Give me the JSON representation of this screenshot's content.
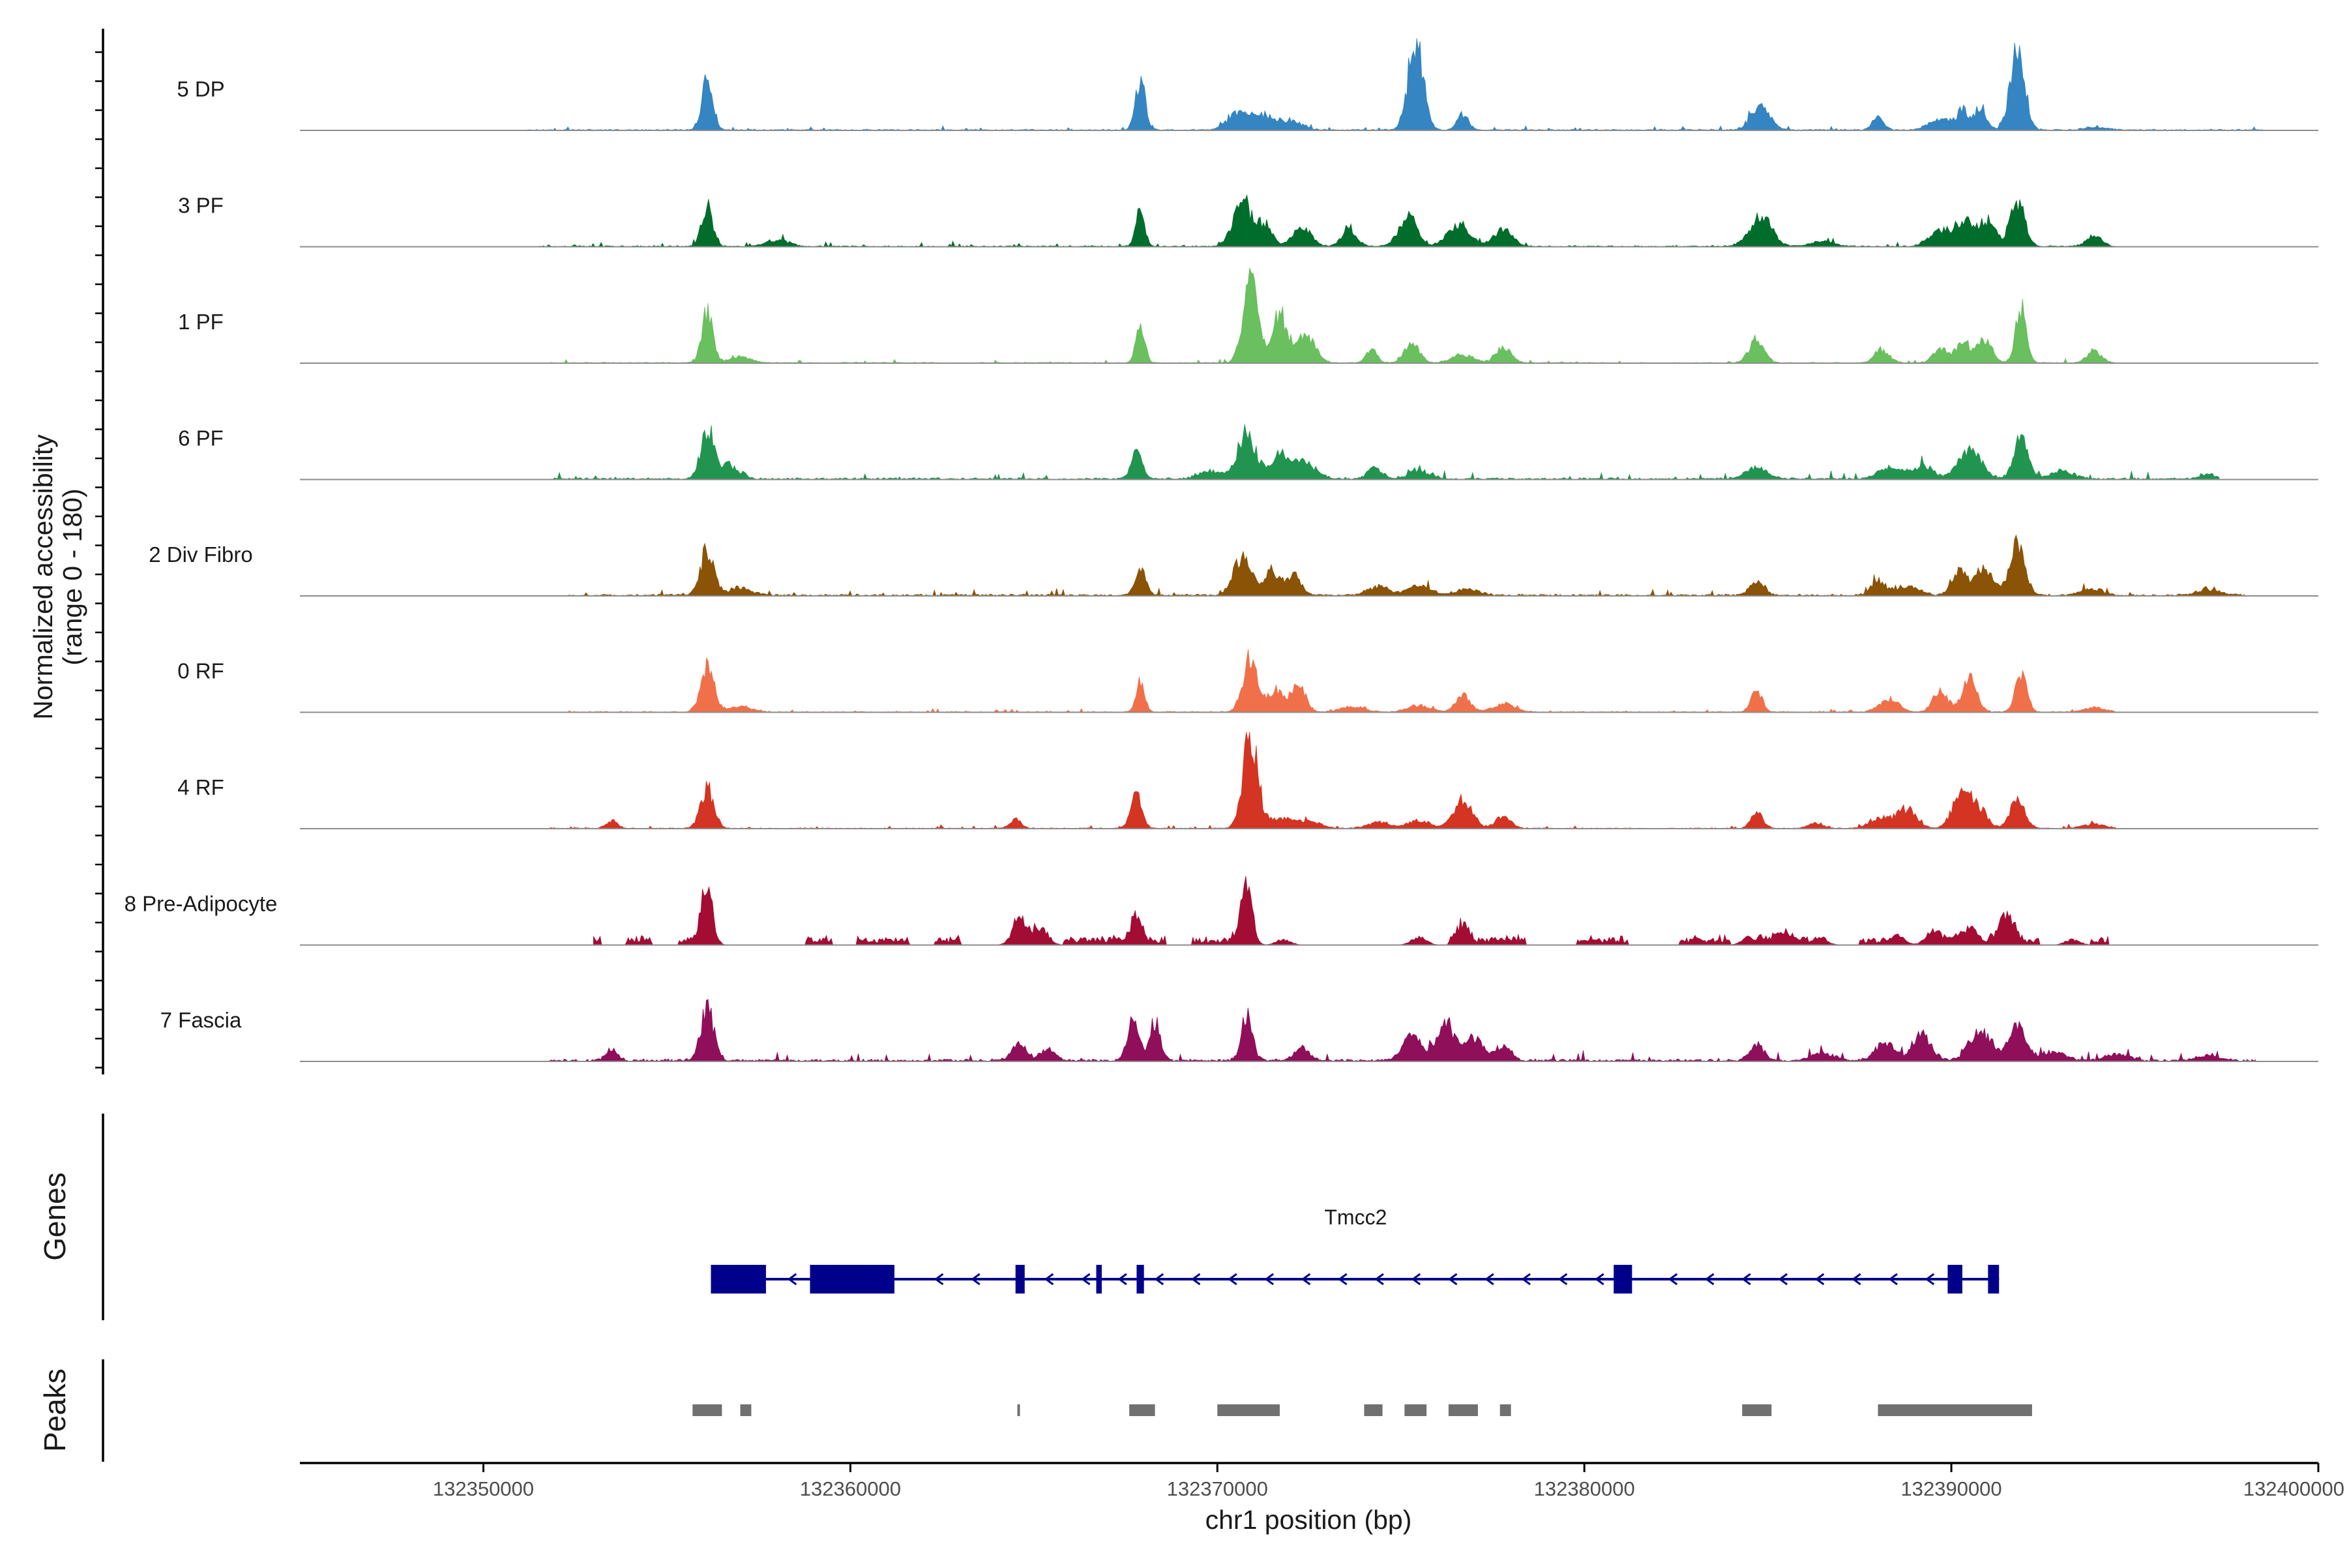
{
  "chart_data": {
    "type": "area",
    "title": "",
    "ylabel": "Normalized accessibility",
    "ylabel_range": "(range 0 - 180)",
    "xlabel": "chr1 position (bp)",
    "xlim": [
      132345000,
      132400000
    ],
    "ylim": [
      0,
      180
    ],
    "x_ticks": [
      132350000,
      132360000,
      132370000,
      132380000,
      132390000,
      132400000
    ],
    "x_tick_labels": [
      "132350000",
      "132360000",
      "132370000",
      "132380000",
      "132390000",
      "132400000"
    ],
    "series": [
      {
        "name": "5 DP",
        "color": "#3485c2",
        "range": [
          132351000,
          132398500
        ],
        "noise": 2,
        "seed": 11,
        "peaks": [
          [
            132356100,
            95,
            150
          ],
          [
            132367900,
            95,
            130
          ],
          [
            132370600,
            35,
            300
          ],
          [
            132371300,
            25,
            250
          ],
          [
            132372000,
            18,
            300
          ],
          [
            132375400,
            170,
            200
          ],
          [
            132376700,
            30,
            150
          ],
          [
            132384800,
            45,
            250
          ],
          [
            132388000,
            25,
            150
          ],
          [
            132389700,
            22,
            300
          ],
          [
            132390300,
            35,
            150
          ],
          [
            132390800,
            45,
            150
          ],
          [
            132391800,
            145,
            200
          ],
          [
            132393900,
            5,
            300
          ]
        ]
      },
      {
        "name": "3 PF",
        "color": "#006d2c",
        "range": [
          132351500,
          132394500
        ],
        "noise": 2,
        "seed": 23,
        "peaks": [
          [
            132356100,
            75,
            150
          ],
          [
            132358000,
            12,
            300
          ],
          [
            132367900,
            65,
            120
          ],
          [
            132370700,
            80,
            250
          ],
          [
            132371300,
            40,
            200
          ],
          [
            132372300,
            35,
            250
          ],
          [
            132373600,
            30,
            200
          ],
          [
            132375200,
            55,
            250
          ],
          [
            132376600,
            40,
            300
          ],
          [
            132377800,
            30,
            250
          ],
          [
            132384800,
            55,
            300
          ],
          [
            132386500,
            10,
            300
          ],
          [
            132389700,
            30,
            300
          ],
          [
            132390400,
            50,
            250
          ],
          [
            132391000,
            45,
            200
          ],
          [
            132391800,
            85,
            200
          ],
          [
            132393900,
            22,
            200
          ]
        ]
      },
      {
        "name": "1 PF",
        "color": "#6abf5f",
        "range": [
          132351800,
          132394500
        ],
        "noise": 1.5,
        "seed": 37,
        "peaks": [
          [
            132356100,
            95,
            150
          ],
          [
            132357000,
            10,
            300
          ],
          [
            132367900,
            70,
            120
          ],
          [
            132370900,
            160,
            200
          ],
          [
            132371700,
            90,
            200
          ],
          [
            132372400,
            55,
            250
          ],
          [
            132374200,
            25,
            150
          ],
          [
            132375300,
            35,
            200
          ],
          [
            132376700,
            15,
            300
          ],
          [
            132377800,
            30,
            200
          ],
          [
            132384700,
            45,
            200
          ],
          [
            132388100,
            25,
            200
          ],
          [
            132389700,
            25,
            200
          ],
          [
            132390300,
            35,
            200
          ],
          [
            132390900,
            45,
            200
          ],
          [
            132391900,
            100,
            150
          ],
          [
            132393900,
            20,
            200
          ]
        ]
      },
      {
        "name": "6 PF",
        "color": "#21954f",
        "range": [
          132351800,
          132397300
        ],
        "noise": 3,
        "seed": 41,
        "peaks": [
          [
            132356100,
            90,
            180
          ],
          [
            132356700,
            25,
            250
          ],
          [
            132367800,
            50,
            150
          ],
          [
            132369800,
            15,
            300
          ],
          [
            132370800,
            85,
            250
          ],
          [
            132371700,
            45,
            250
          ],
          [
            132372400,
            30,
            300
          ],
          [
            132374300,
            20,
            200
          ],
          [
            132375500,
            15,
            300
          ],
          [
            132384700,
            20,
            300
          ],
          [
            132388300,
            20,
            300
          ],
          [
            132389200,
            25,
            300
          ],
          [
            132390500,
            55,
            300
          ],
          [
            132391900,
            75,
            200
          ],
          [
            132393000,
            15,
            300
          ],
          [
            132397000,
            10,
            200
          ]
        ]
      },
      {
        "name": "2 Div Fibro",
        "color": "#8a5305",
        "range": [
          132352300,
          132398000
        ],
        "noise": 3,
        "seed": 53,
        "peaks": [
          [
            132356100,
            85,
            180
          ],
          [
            132357000,
            15,
            300
          ],
          [
            132367900,
            45,
            150
          ],
          [
            132370700,
            70,
            250
          ],
          [
            132371500,
            45,
            200
          ],
          [
            132372100,
            35,
            200
          ],
          [
            132374400,
            15,
            300
          ],
          [
            132375500,
            18,
            300
          ],
          [
            132376800,
            12,
            300
          ],
          [
            132384700,
            25,
            200
          ],
          [
            132388000,
            25,
            200
          ],
          [
            132388800,
            18,
            300
          ],
          [
            132390200,
            45,
            200
          ],
          [
            132390900,
            50,
            250
          ],
          [
            132391800,
            100,
            200
          ],
          [
            132393800,
            12,
            300
          ],
          [
            132397000,
            10,
            300
          ]
        ]
      },
      {
        "name": "0 RF",
        "color": "#f0704a",
        "range": [
          132352300,
          132394500
        ],
        "noise": 1.5,
        "seed": 61,
        "peaks": [
          [
            132356100,
            85,
            180
          ],
          [
            132357000,
            10,
            300
          ],
          [
            132367900,
            60,
            120
          ],
          [
            132370900,
            100,
            200
          ],
          [
            132371600,
            40,
            200
          ],
          [
            132372200,
            50,
            200
          ],
          [
            132373700,
            10,
            300
          ],
          [
            132375500,
            12,
            300
          ],
          [
            132376700,
            30,
            200
          ],
          [
            132377800,
            15,
            300
          ],
          [
            132384700,
            40,
            150
          ],
          [
            132388300,
            25,
            250
          ],
          [
            132389700,
            40,
            200
          ],
          [
            132390500,
            60,
            200
          ],
          [
            132391900,
            70,
            150
          ],
          [
            132393900,
            8,
            300
          ]
        ]
      },
      {
        "name": "4 RF",
        "color": "#d43422",
        "range": [
          132351800,
          132394500
        ],
        "noise": 1.5,
        "seed": 73,
        "peaks": [
          [
            132353500,
            15,
            150
          ],
          [
            132356100,
            75,
            180
          ],
          [
            132364500,
            18,
            150
          ],
          [
            132367800,
            65,
            150
          ],
          [
            132370900,
            175,
            200
          ],
          [
            132371700,
            20,
            300
          ],
          [
            132372500,
            15,
            300
          ],
          [
            132374400,
            12,
            300
          ],
          [
            132375500,
            15,
            300
          ],
          [
            132376700,
            50,
            250
          ],
          [
            132377800,
            25,
            200
          ],
          [
            132384700,
            35,
            150
          ],
          [
            132386300,
            10,
            200
          ],
          [
            132388100,
            20,
            300
          ],
          [
            132388800,
            35,
            250
          ],
          [
            132390300,
            70,
            250
          ],
          [
            132390800,
            30,
            200
          ],
          [
            132391800,
            50,
            200
          ],
          [
            132393900,
            8,
            300
          ]
        ]
      },
      {
        "name": "8 Pre-Adipocyte",
        "color": "#a30d34",
        "range": [
          132353000,
          132394300
        ],
        "noise": 4,
        "seed": 89,
        "sparse": [
          [
            132355000,
            132393800
          ]
        ],
        "peaks": [
          [
            132356100,
            110,
            150
          ],
          [
            132364600,
            40,
            200
          ],
          [
            132365200,
            30,
            200
          ],
          [
            132367800,
            45,
            150
          ],
          [
            132370800,
            125,
            150
          ],
          [
            132371800,
            10,
            200
          ],
          [
            132375500,
            15,
            200
          ],
          [
            132376700,
            35,
            150
          ],
          [
            132384500,
            15,
            200
          ],
          [
            132385400,
            15,
            200
          ],
          [
            132386400,
            15,
            200
          ],
          [
            132388500,
            20,
            200
          ],
          [
            132389500,
            25,
            200
          ],
          [
            132390500,
            30,
            250
          ],
          [
            132391500,
            45,
            200
          ],
          [
            132393300,
            10,
            200
          ]
        ]
      },
      {
        "name": "7 Fascia",
        "color": "#8f0f5b",
        "range": [
          132351800,
          132398300
        ],
        "noise": 4,
        "seed": 97,
        "peaks": [
          [
            132353500,
            20,
            150
          ],
          [
            132356100,
            95,
            180
          ],
          [
            132364600,
            30,
            200
          ],
          [
            132365400,
            20,
            200
          ],
          [
            132367700,
            85,
            150
          ],
          [
            132368300,
            70,
            150
          ],
          [
            132370800,
            85,
            150
          ],
          [
            132372300,
            25,
            200
          ],
          [
            132375300,
            45,
            250
          ],
          [
            132376200,
            70,
            250
          ],
          [
            132377000,
            40,
            250
          ],
          [
            132377800,
            30,
            200
          ],
          [
            132384700,
            30,
            200
          ],
          [
            132386500,
            15,
            300
          ],
          [
            132388200,
            35,
            250
          ],
          [
            132389200,
            50,
            250
          ],
          [
            132390800,
            55,
            300
          ],
          [
            132391800,
            60,
            250
          ],
          [
            132392800,
            15,
            300
          ],
          [
            132394500,
            12,
            300
          ],
          [
            132397000,
            10,
            300
          ]
        ]
      }
    ],
    "genes": {
      "title": "Genes",
      "name": "Tmcc2",
      "strand": "-",
      "color": "#00008b",
      "start": 132356200,
      "end": 132391300,
      "exons": [
        [
          132356200,
          132357700
        ],
        [
          132358900,
          132361200
        ],
        [
          132364500,
          132364750
        ],
        [
          132366700,
          132366850
        ],
        [
          132367800,
          132368000
        ],
        [
          132380800,
          132381300
        ],
        [
          132389900,
          132390300
        ],
        [
          132391000,
          132391300
        ]
      ]
    },
    "peaks": {
      "title": "Peaks",
      "color": "#707070",
      "regions": [
        [
          132355700,
          132356500
        ],
        [
          132357000,
          132357300
        ],
        [
          132364550,
          132364620
        ],
        [
          132367600,
          132368300
        ],
        [
          132370000,
          132371700
        ],
        [
          132374000,
          132374500
        ],
        [
          132375100,
          132375700
        ],
        [
          132376300,
          132377100
        ],
        [
          132377700,
          132378000
        ],
        [
          132384300,
          132385100
        ],
        [
          132388000,
          132392200
        ]
      ]
    }
  }
}
